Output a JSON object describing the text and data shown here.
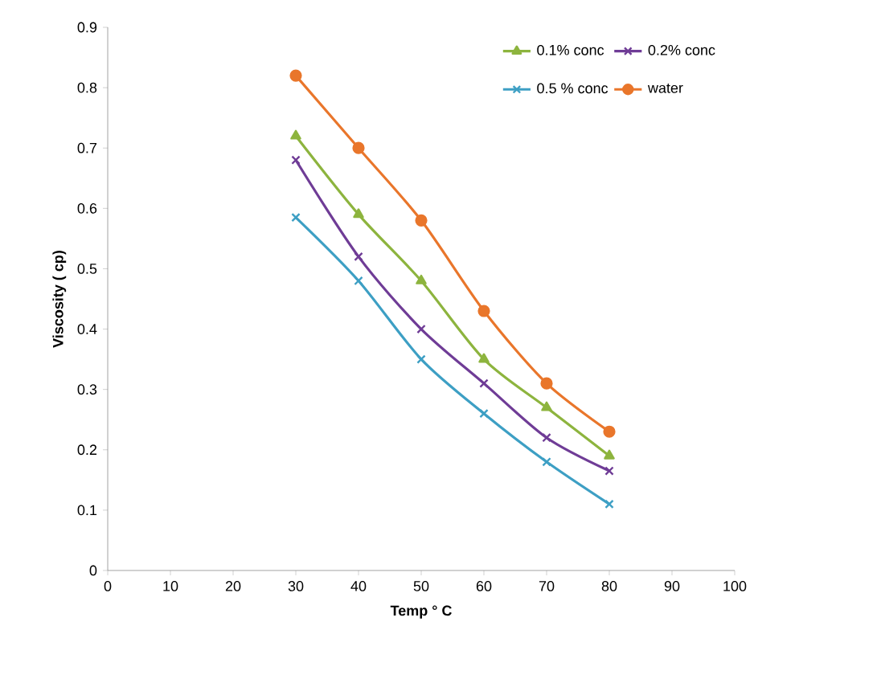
{
  "chart_data": {
    "type": "line",
    "xlabel": "Temp ° C",
    "ylabel": "Viscosity ( cp)",
    "x": [
      30,
      40,
      50,
      60,
      70,
      80
    ],
    "series": [
      {
        "name": "0.1% conc",
        "color": "#8db43e",
        "marker": "triangle",
        "values": [
          0.72,
          0.59,
          0.48,
          0.35,
          0.27,
          0.19
        ]
      },
      {
        "name": "0.2% conc",
        "color": "#6f3c96",
        "marker": "cross",
        "values": [
          0.68,
          0.52,
          0.4,
          0.31,
          0.22,
          0.165
        ]
      },
      {
        "name": "0.5 % conc",
        "color": "#3d9fc4",
        "marker": "cross",
        "values": [
          0.585,
          0.48,
          0.35,
          0.26,
          0.18,
          0.11
        ]
      },
      {
        "name": "water",
        "color": "#e9762b",
        "marker": "circle",
        "values": [
          0.82,
          0.7,
          0.58,
          0.43,
          0.31,
          0.23
        ]
      }
    ],
    "xlim": [
      0,
      100
    ],
    "xticks": [
      0,
      10,
      20,
      30,
      40,
      50,
      60,
      70,
      80,
      90,
      100
    ],
    "ylim": [
      0,
      0.9
    ],
    "yticks": [
      0,
      0.1,
      0.2,
      0.3,
      0.4,
      0.5,
      0.6,
      0.7,
      0.8,
      0.9
    ],
    "grid": false,
    "legend": "top right",
    "line_style": "solid"
  }
}
